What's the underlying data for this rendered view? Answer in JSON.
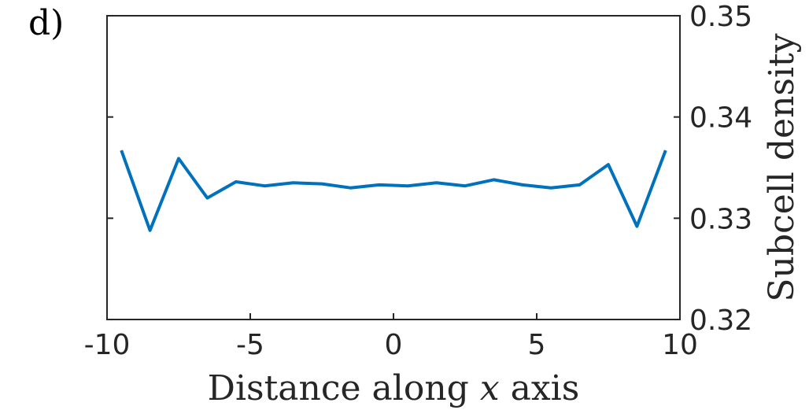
{
  "panel_label": "d)",
  "chart_data": {
    "type": "line",
    "title": "",
    "xlabel_parts": [
      "Distance along ",
      "x",
      " axis"
    ],
    "xlabel": "Distance along x axis",
    "ylabel": "Subcell density",
    "y_axis_side": "right",
    "xlim": [
      -10,
      10
    ],
    "ylim": [
      0.32,
      0.35
    ],
    "x_ticks": [
      -10,
      -5,
      0,
      5,
      10
    ],
    "x_tick_labels": [
      "-10",
      "-5",
      "0",
      "5",
      "10"
    ],
    "y_ticks": [
      0.32,
      0.33,
      0.34,
      0.35
    ],
    "y_tick_labels": [
      "0.32",
      "0.33",
      "0.34",
      "0.35"
    ],
    "grid": false,
    "series": [
      {
        "color": "#0072BD",
        "x": [
          -9.5,
          -8.5,
          -7.5,
          -6.5,
          -5.5,
          -4.5,
          -3.5,
          -2.5,
          -1.5,
          -0.5,
          0.5,
          1.5,
          2.5,
          3.5,
          4.5,
          5.5,
          6.5,
          7.5,
          8.5,
          9.5
        ],
        "y": [
          0.3367,
          0.3288,
          0.3359,
          0.332,
          0.3336,
          0.3332,
          0.3335,
          0.3334,
          0.333,
          0.3333,
          0.3332,
          0.3335,
          0.3332,
          0.3338,
          0.3333,
          0.333,
          0.3333,
          0.3353,
          0.3292,
          0.3367
        ]
      }
    ]
  }
}
